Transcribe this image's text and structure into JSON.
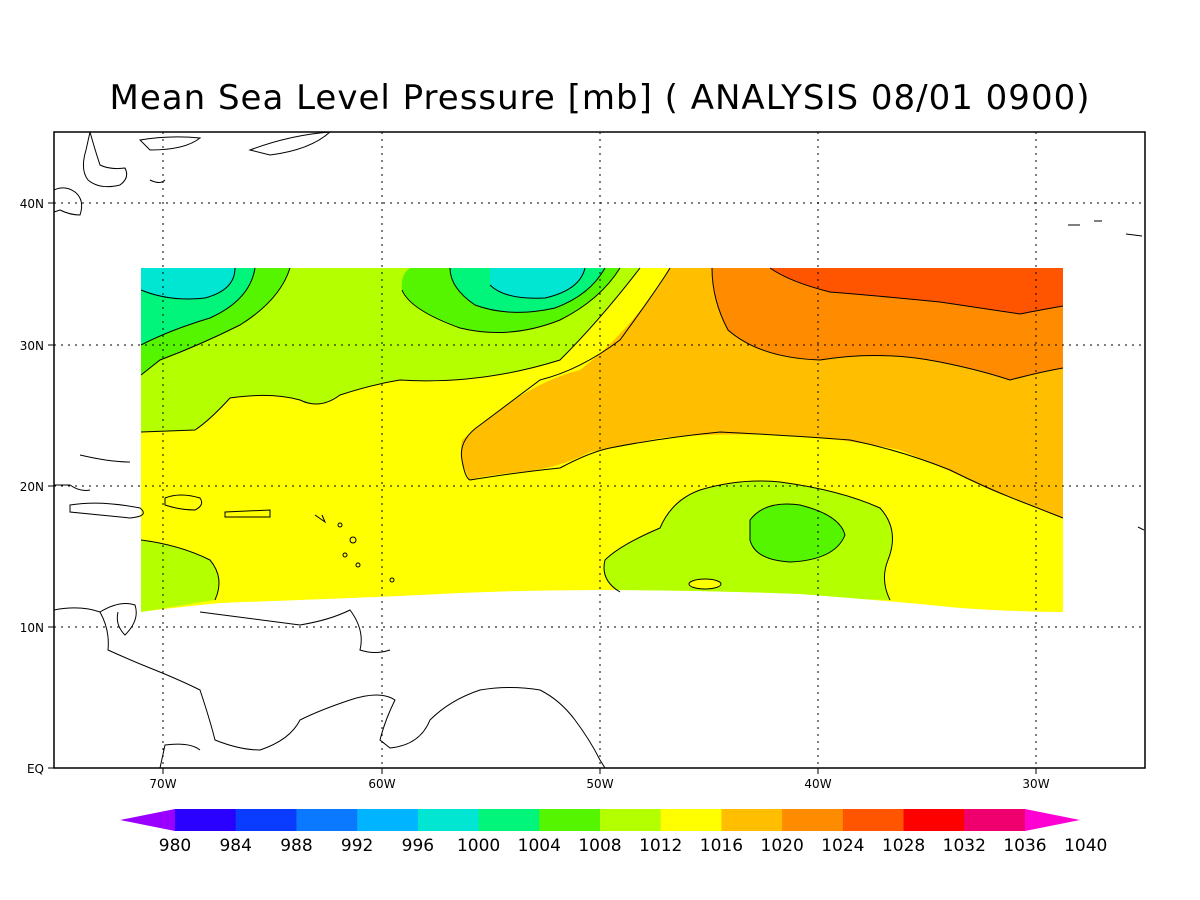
{
  "title": "Mean Sea Level Pressure [mb] ( ANALYSIS 08/01 0900)",
  "map": {
    "lat_labels": [
      "EQ",
      "10N",
      "20N",
      "30N",
      "40N"
    ],
    "lon_labels": [
      "70W",
      "60W",
      "50W",
      "40W",
      "30W"
    ],
    "grid": true,
    "grid_style": "dotted"
  },
  "colorbar": {
    "labels": [
      "980",
      "984",
      "988",
      "992",
      "996",
      "1000",
      "1004",
      "1008",
      "1012",
      "1016",
      "1020",
      "1024",
      "1028",
      "1032",
      "1036",
      "1040"
    ],
    "colors": [
      "#9900ff",
      "#2a00ff",
      "#0a3cff",
      "#0a78ff",
      "#00b4ff",
      "#00e6d2",
      "#00f57a",
      "#55f500",
      "#b4ff00",
      "#ffff00",
      "#ffbe00",
      "#ff8c00",
      "#ff5500",
      "#ff0000",
      "#f0006e",
      "#ff00d2"
    ]
  }
}
